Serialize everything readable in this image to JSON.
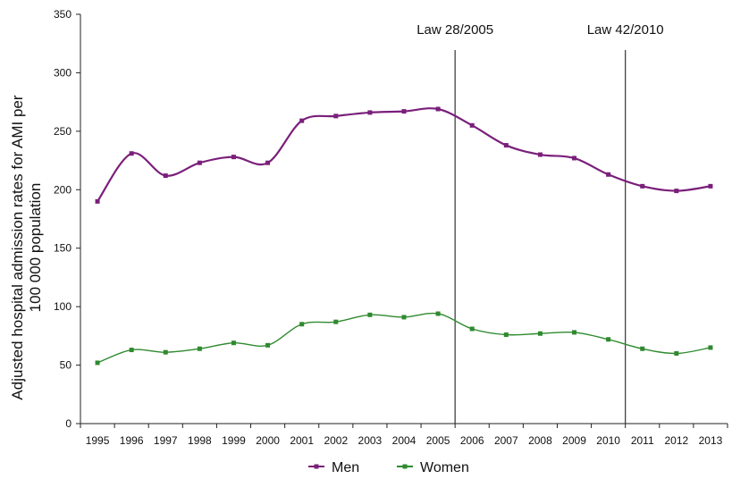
{
  "chart_data": {
    "type": "line",
    "title": "",
    "xlabel": "",
    "ylabel_lines": [
      "Adjusted hospital admission rates for AMI per",
      "100 000 population"
    ],
    "ylim": [
      0,
      350
    ],
    "yticks": [
      0,
      50,
      100,
      150,
      200,
      250,
      300,
      350
    ],
    "categories": [
      "1995",
      "1996",
      "1997",
      "1998",
      "1999",
      "2000",
      "2001",
      "2002",
      "2003",
      "2004",
      "2005",
      "2006",
      "2007",
      "2008",
      "2009",
      "2010",
      "2011",
      "2012",
      "2013"
    ],
    "grid": false,
    "legend_position": "bottom",
    "series": [
      {
        "name": "Men",
        "color": "#7a1f7a",
        "values": [
          190,
          231,
          212,
          223,
          228,
          223,
          259,
          263,
          266,
          267,
          269,
          255,
          238,
          230,
          227,
          213,
          203,
          199,
          203
        ]
      },
      {
        "name": "Women",
        "color": "#2f8a2f",
        "values": [
          52,
          63,
          61,
          64,
          69,
          67,
          85,
          87,
          93,
          91,
          94,
          81,
          76,
          77,
          78,
          72,
          64,
          60,
          65
        ]
      }
    ],
    "annotations": [
      {
        "label": "Law 28/2005",
        "x": "2005"
      },
      {
        "label": "Law 42/2010",
        "x": "2010"
      }
    ]
  }
}
